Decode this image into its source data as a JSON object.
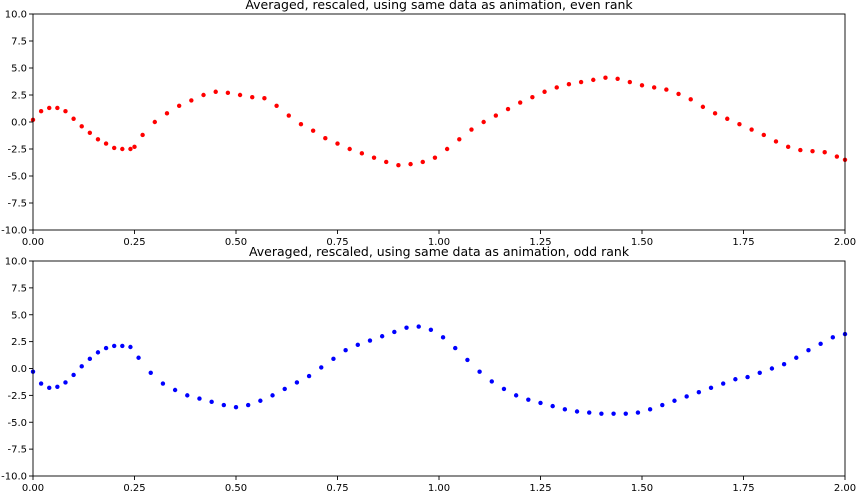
{
  "chart_data": [
    {
      "type": "scatter",
      "title": "Averaged, rescaled, using same data as animation, even rank",
      "xlabel": "",
      "ylabel": "",
      "xlim": [
        0.0,
        2.0
      ],
      "ylim": [
        -10.0,
        10.0
      ],
      "xticks": [
        "0.00",
        "0.25",
        "0.50",
        "0.75",
        "1.00",
        "1.25",
        "1.50",
        "1.75",
        "2.00"
      ],
      "yticks": [
        "-10.0",
        "-7.5",
        "-5.0",
        "-2.5",
        "0.0",
        "2.5",
        "5.0",
        "7.5",
        "10.0"
      ],
      "grid": false,
      "color": "#ff0000",
      "series": [
        {
          "x": [
            0.0,
            0.02,
            0.04,
            0.06,
            0.08,
            0.1,
            0.12,
            0.14,
            0.16,
            0.18,
            0.2,
            0.22,
            0.24,
            0.25,
            0.27,
            0.3,
            0.33,
            0.36,
            0.39,
            0.42,
            0.45,
            0.48,
            0.51,
            0.54,
            0.57,
            0.6,
            0.63,
            0.66,
            0.69,
            0.72,
            0.75,
            0.78,
            0.81,
            0.84,
            0.87,
            0.9,
            0.93,
            0.96,
            0.99,
            1.02,
            1.05,
            1.08,
            1.11,
            1.14,
            1.17,
            1.2,
            1.23,
            1.26,
            1.29,
            1.32,
            1.35,
            1.38,
            1.41,
            1.44,
            1.47,
            1.5,
            1.53,
            1.56,
            1.59,
            1.62,
            1.65,
            1.68,
            1.71,
            1.74,
            1.77,
            1.8,
            1.83,
            1.86,
            1.89,
            1.92,
            1.95,
            1.98,
            2.0
          ],
          "y": [
            0.2,
            1.0,
            1.3,
            1.3,
            1.0,
            0.3,
            -0.4,
            -1.0,
            -1.6,
            -2.0,
            -2.4,
            -2.5,
            -2.5,
            -2.3,
            -1.2,
            0.0,
            0.8,
            1.5,
            2.0,
            2.5,
            2.8,
            2.7,
            2.5,
            2.3,
            2.2,
            1.5,
            0.6,
            -0.2,
            -0.8,
            -1.5,
            -2.0,
            -2.5,
            -2.9,
            -3.3,
            -3.7,
            -4.0,
            -3.9,
            -3.7,
            -3.3,
            -2.5,
            -1.6,
            -0.7,
            0.0,
            0.6,
            1.2,
            1.8,
            2.3,
            2.8,
            3.2,
            3.5,
            3.7,
            3.9,
            4.1,
            4.0,
            3.7,
            3.4,
            3.2,
            3.0,
            2.6,
            2.1,
            1.4,
            0.8,
            0.3,
            -0.2,
            -0.7,
            -1.2,
            -1.8,
            -2.3,
            -2.6,
            -2.7,
            -2.8,
            -3.2,
            -3.5
          ]
        }
      ]
    },
    {
      "type": "scatter",
      "title": "Averaged, rescaled, using same data as animation, odd rank",
      "xlabel": "",
      "ylabel": "",
      "xlim": [
        0.0,
        2.0
      ],
      "ylim": [
        -10.0,
        10.0
      ],
      "xticks": [
        "0.00",
        "0.25",
        "0.50",
        "0.75",
        "1.00",
        "1.25",
        "1.50",
        "1.75",
        "2.00"
      ],
      "yticks": [
        "-10.0",
        "-7.5",
        "-5.0",
        "-2.5",
        "0.0",
        "2.5",
        "5.0",
        "7.5",
        "10.0"
      ],
      "grid": false,
      "color": "#0000ff",
      "series": [
        {
          "x": [
            0.0,
            0.02,
            0.04,
            0.06,
            0.08,
            0.1,
            0.12,
            0.14,
            0.16,
            0.18,
            0.2,
            0.22,
            0.24,
            0.26,
            0.29,
            0.32,
            0.35,
            0.38,
            0.41,
            0.44,
            0.47,
            0.5,
            0.53,
            0.56,
            0.59,
            0.62,
            0.65,
            0.68,
            0.71,
            0.74,
            0.77,
            0.8,
            0.83,
            0.86,
            0.89,
            0.92,
            0.95,
            0.98,
            1.01,
            1.04,
            1.07,
            1.1,
            1.13,
            1.16,
            1.19,
            1.22,
            1.25,
            1.28,
            1.31,
            1.34,
            1.37,
            1.4,
            1.43,
            1.46,
            1.49,
            1.52,
            1.55,
            1.58,
            1.61,
            1.64,
            1.67,
            1.7,
            1.73,
            1.76,
            1.79,
            1.82,
            1.85,
            1.88,
            1.91,
            1.94,
            1.97,
            2.0
          ],
          "y": [
            -0.3,
            -1.4,
            -1.8,
            -1.7,
            -1.3,
            -0.6,
            0.2,
            0.9,
            1.5,
            1.9,
            2.1,
            2.1,
            2.0,
            1.0,
            -0.4,
            -1.4,
            -2.0,
            -2.5,
            -2.8,
            -3.1,
            -3.4,
            -3.6,
            -3.4,
            -3.0,
            -2.5,
            -1.9,
            -1.3,
            -0.7,
            0.1,
            0.9,
            1.7,
            2.2,
            2.6,
            3.0,
            3.4,
            3.8,
            3.9,
            3.6,
            2.9,
            1.9,
            0.8,
            -0.3,
            -1.2,
            -1.9,
            -2.5,
            -2.9,
            -3.2,
            -3.5,
            -3.8,
            -4.0,
            -4.1,
            -4.2,
            -4.2,
            -4.2,
            -4.1,
            -3.8,
            -3.4,
            -3.0,
            -2.6,
            -2.2,
            -1.8,
            -1.4,
            -1.0,
            -0.8,
            -0.4,
            0.0,
            0.4,
            1.0,
            1.7,
            2.3,
            2.9,
            3.2
          ]
        }
      ]
    }
  ]
}
